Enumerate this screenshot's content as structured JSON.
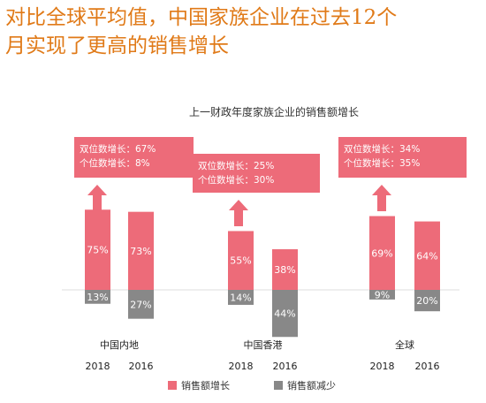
{
  "headline": {
    "line1": "对比全球平均值，中国家族企业在过去12个",
    "line2": "月实现了更高的销售增长"
  },
  "chart_data": {
    "type": "bar",
    "title": "上一财政年度家族企业的销售额增长",
    "groups": [
      {
        "name": "中国内地",
        "years": [
          "2018",
          "2016"
        ],
        "increase": [
          75,
          73
        ],
        "decrease": [
          13,
          27
        ],
        "callout": [
          "双位数增长：67%",
          "个位数增长：8%"
        ]
      },
      {
        "name": "中国香港",
        "years": [
          "2018",
          "2016"
        ],
        "increase": [
          55,
          38
        ],
        "decrease": [
          14,
          44
        ],
        "callout": [
          "双位数增长：25%",
          "个位数增长：30%"
        ]
      },
      {
        "name": "全球",
        "years": [
          "2018",
          "2016"
        ],
        "increase": [
          69,
          64
        ],
        "decrease": [
          9,
          20
        ],
        "callout": [
          "双位数增长：34%",
          "个位数增长：35%"
        ]
      }
    ],
    "series": [
      {
        "name": "销售额增长",
        "color": "#ed6b79"
      },
      {
        "name": "销售额减少",
        "color": "#888888"
      }
    ],
    "value_suffix": "%",
    "legend_position": "bottom"
  }
}
